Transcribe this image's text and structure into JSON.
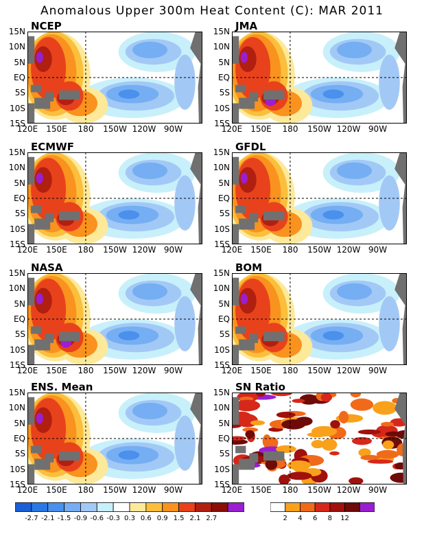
{
  "title": "Anomalous Upper 300m Heat Content (C): MAR 2011",
  "panels": [
    {
      "name": "NCEP",
      "scheme": "hc"
    },
    {
      "name": "JMA",
      "scheme": "hc"
    },
    {
      "name": "ECMWF",
      "scheme": "hc"
    },
    {
      "name": "GFDL",
      "scheme": "hc"
    },
    {
      "name": "NASA",
      "scheme": "hc"
    },
    {
      "name": "BOM",
      "scheme": "hc"
    },
    {
      "name": "ENS. Mean",
      "scheme": "hc"
    },
    {
      "name": "SN Ratio",
      "scheme": "sn"
    }
  ],
  "axes": {
    "ylabels": [
      "15N",
      "10N",
      "5N",
      "EQ",
      "5S",
      "10S",
      "15S"
    ],
    "xlabels": [
      "120E",
      "150E",
      "180",
      "150W",
      "120W",
      "90W"
    ]
  },
  "colorbar_hc": {
    "colors": [
      "#1a5fd6",
      "#2b78e4",
      "#4a90ec",
      "#75aef2",
      "#a2c9f6",
      "#c8f0fb",
      "#ffffff",
      "#fde99a",
      "#fbbf3c",
      "#f9921e",
      "#e8421c",
      "#b01f10",
      "#8a0d08",
      "#9a1fd0"
    ],
    "ticks": [
      "-2.7",
      "-2.1",
      "-1.5",
      "-0.9",
      "-0.6",
      "-0.3",
      "0.3",
      "0.6",
      "0.9",
      "1.5",
      "2.1",
      "2.7"
    ]
  },
  "colorbar_sn": {
    "colors": [
      "#ffffff",
      "#f9a11b",
      "#f06a1a",
      "#d6281a",
      "#a0100c",
      "#6e0a08",
      "#9a1fd0"
    ],
    "ticks": [
      "2",
      "4",
      "6",
      "8",
      "12"
    ]
  },
  "map_colors": {
    "land": "#707070",
    "dashed": "#000000"
  }
}
